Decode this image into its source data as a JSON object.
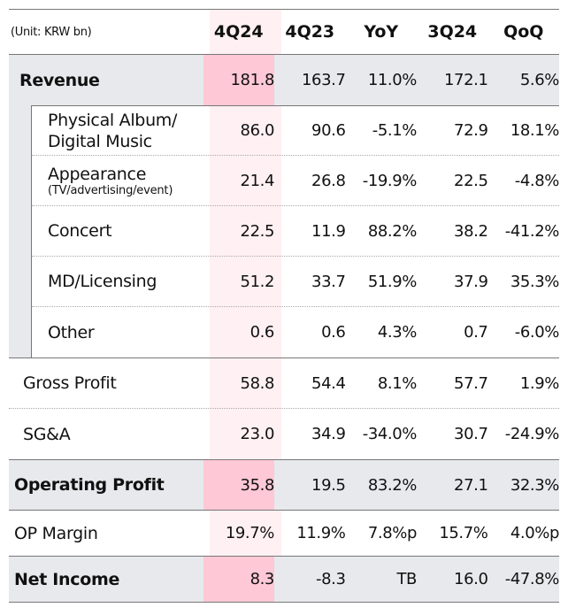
{
  "header": {
    "unit": "(Unit: KRW bn)",
    "columns": [
      "4Q24",
      "4Q23",
      "YoY",
      "3Q24",
      "QoQ"
    ]
  },
  "revenue": {
    "label": "Revenue",
    "values": [
      "181.8",
      "163.7",
      "11.0%",
      "172.1",
      "5.6%"
    ]
  },
  "sub_rows": [
    {
      "label": "Physical Album/",
      "label2": "Digital Music",
      "values": [
        "86.0",
        "90.6",
        "-5.1%",
        "72.9",
        "18.1%"
      ]
    },
    {
      "label": "Appearance",
      "label2": "(TV/advertising/event)",
      "values": [
        "21.4",
        "26.8",
        "-19.9%",
        "22.5",
        "-4.8%"
      ]
    },
    {
      "label": "Concert",
      "values": [
        "22.5",
        "11.9",
        "88.2%",
        "38.2",
        "-41.2%"
      ]
    },
    {
      "label": "MD/Licensing",
      "values": [
        "51.2",
        "33.7",
        "51.9%",
        "37.9",
        "35.3%"
      ]
    },
    {
      "label": "Other",
      "values": [
        "0.6",
        "0.6",
        "4.3%",
        "0.7",
        "-6.0%"
      ]
    }
  ],
  "gross_profit": {
    "label": "Gross Profit",
    "values": [
      "58.8",
      "54.4",
      "8.1%",
      "57.7",
      "1.9%"
    ]
  },
  "sga": {
    "label": "SG&A",
    "values": [
      "23.0",
      "34.9",
      "-34.0%",
      "30.7",
      "-24.9%"
    ]
  },
  "operating_profit": {
    "label": "Operating Profit",
    "values": [
      "35.8",
      "19.5",
      "83.2%",
      "27.1",
      "32.3%"
    ]
  },
  "op_margin": {
    "label": "OP Margin",
    "values": [
      "19.7%",
      "11.9%",
      "7.8%p",
      "15.7%",
      "4.0%p"
    ]
  },
  "net_income": {
    "label": "Net Income",
    "values": [
      "8.3",
      "-8.3",
      "TB",
      "16.0",
      "-47.8%"
    ]
  },
  "colors": {
    "highlight": "#ffc8d6",
    "highlight_light": "#fff0f3",
    "row_gray": "#e8e9ed"
  }
}
